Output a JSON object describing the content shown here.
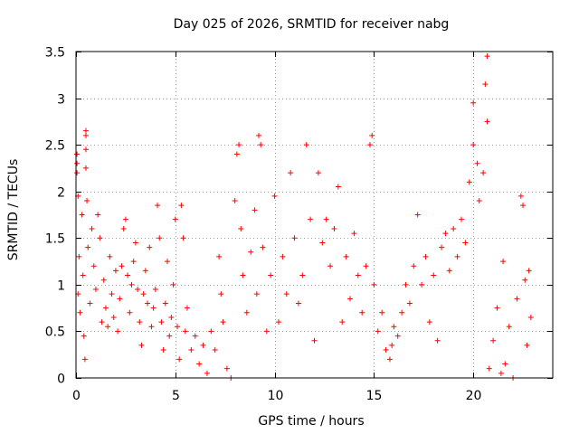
{
  "chart_data": {
    "type": "scatter",
    "title": "Day 025 of 2026, SRMTID for receiver nabg",
    "xlabel": "GPS time / hours",
    "ylabel": "SRMTID / TECUs",
    "xlim": [
      0,
      24
    ],
    "ylim": [
      0,
      3.5
    ],
    "xticks": [
      0,
      5,
      10,
      15,
      20
    ],
    "xtick_labels": [
      "0",
      "5",
      "10",
      "15",
      "20"
    ],
    "yticks": [
      0,
      0.5,
      1,
      1.5,
      2,
      2.5,
      3,
      3.5
    ],
    "ytick_labels": [
      "0",
      "0.5",
      "1",
      "1.5",
      "2",
      "2.5",
      "3",
      "3.5"
    ],
    "grid": true,
    "marker": "+",
    "color": "#ff0000",
    "series": [
      {
        "name": "SRMTID",
        "points": [
          [
            0.05,
            2.4
          ],
          [
            0.05,
            2.3
          ],
          [
            0.05,
            2.2
          ],
          [
            0.1,
            1.95
          ],
          [
            0.1,
            0.9
          ],
          [
            0.15,
            1.3
          ],
          [
            0.2,
            0.7
          ],
          [
            0.3,
            1.75
          ],
          [
            0.35,
            1.1
          ],
          [
            0.4,
            0.45
          ],
          [
            0.45,
            0.2
          ],
          [
            0.5,
            2.6
          ],
          [
            0.5,
            2.65
          ],
          [
            0.5,
            2.45
          ],
          [
            0.5,
            2.25
          ],
          [
            0.55,
            1.9
          ],
          [
            0.6,
            1.4
          ],
          [
            0.7,
            0.8
          ],
          [
            0.8,
            1.6
          ],
          [
            0.9,
            1.2
          ],
          [
            1.0,
            0.95
          ],
          [
            1.1,
            1.75
          ],
          [
            1.2,
            1.5
          ],
          [
            1.3,
            0.6
          ],
          [
            1.4,
            1.05
          ],
          [
            1.5,
            0.75
          ],
          [
            1.6,
            0.55
          ],
          [
            1.7,
            1.3
          ],
          [
            1.8,
            0.9
          ],
          [
            1.9,
            0.65
          ],
          [
            2.0,
            1.15
          ],
          [
            2.1,
            0.5
          ],
          [
            2.2,
            0.85
          ],
          [
            2.3,
            1.2
          ],
          [
            2.4,
            1.6
          ],
          [
            2.5,
            1.7
          ],
          [
            2.6,
            1.1
          ],
          [
            2.7,
            0.7
          ],
          [
            2.8,
            1.0
          ],
          [
            2.9,
            1.25
          ],
          [
            3.0,
            1.45
          ],
          [
            3.1,
            0.95
          ],
          [
            3.2,
            0.6
          ],
          [
            3.3,
            0.35
          ],
          [
            3.4,
            0.9
          ],
          [
            3.5,
            1.15
          ],
          [
            3.6,
            0.8
          ],
          [
            3.7,
            1.4
          ],
          [
            3.8,
            0.55
          ],
          [
            3.9,
            0.75
          ],
          [
            4.0,
            0.95
          ],
          [
            4.1,
            1.85
          ],
          [
            4.2,
            1.5
          ],
          [
            4.3,
            0.6
          ],
          [
            4.4,
            0.3
          ],
          [
            4.5,
            0.8
          ],
          [
            4.6,
            1.25
          ],
          [
            4.7,
            0.45
          ],
          [
            4.8,
            0.65
          ],
          [
            4.9,
            1.0
          ],
          [
            5.0,
            1.7
          ],
          [
            5.1,
            0.55
          ],
          [
            5.2,
            0.2
          ],
          [
            5.3,
            1.85
          ],
          [
            5.4,
            1.5
          ],
          [
            5.5,
            0.5
          ],
          [
            5.6,
            0.75
          ],
          [
            5.8,
            0.3
          ],
          [
            6.0,
            0.45
          ],
          [
            6.2,
            0.15
          ],
          [
            6.4,
            0.35
          ],
          [
            6.6,
            0.05
          ],
          [
            6.8,
            0.5
          ],
          [
            7.0,
            0.3
          ],
          [
            7.2,
            1.3
          ],
          [
            7.3,
            0.9
          ],
          [
            7.4,
            0.6
          ],
          [
            7.6,
            0.1
          ],
          [
            7.8,
            0.0
          ],
          [
            8.0,
            1.9
          ],
          [
            8.1,
            2.4
          ],
          [
            8.2,
            2.5
          ],
          [
            8.3,
            1.6
          ],
          [
            8.4,
            1.1
          ],
          [
            8.6,
            0.7
          ],
          [
            8.8,
            1.35
          ],
          [
            9.0,
            1.8
          ],
          [
            9.1,
            0.9
          ],
          [
            9.2,
            2.6
          ],
          [
            9.3,
            2.5
          ],
          [
            9.4,
            1.4
          ],
          [
            9.6,
            0.5
          ],
          [
            9.8,
            1.1
          ],
          [
            10.0,
            1.95
          ],
          [
            10.2,
            0.6
          ],
          [
            10.4,
            1.3
          ],
          [
            10.6,
            0.9
          ],
          [
            10.8,
            2.2
          ],
          [
            11.0,
            1.5
          ],
          [
            11.2,
            0.8
          ],
          [
            11.4,
            1.1
          ],
          [
            11.6,
            2.5
          ],
          [
            11.8,
            1.7
          ],
          [
            12.0,
            0.4
          ],
          [
            12.2,
            2.2
          ],
          [
            12.4,
            1.45
          ],
          [
            12.6,
            1.7
          ],
          [
            12.8,
            1.2
          ],
          [
            13.0,
            1.6
          ],
          [
            13.2,
            2.05
          ],
          [
            13.4,
            0.6
          ],
          [
            13.6,
            1.3
          ],
          [
            13.8,
            0.85
          ],
          [
            14.0,
            1.55
          ],
          [
            14.2,
            1.1
          ],
          [
            14.4,
            0.7
          ],
          [
            14.6,
            1.2
          ],
          [
            14.8,
            2.5
          ],
          [
            14.9,
            2.6
          ],
          [
            15.0,
            1.0
          ],
          [
            15.2,
            0.5
          ],
          [
            15.4,
            0.7
          ],
          [
            15.6,
            0.3
          ],
          [
            15.8,
            0.2
          ],
          [
            15.9,
            0.35
          ],
          [
            16.0,
            0.55
          ],
          [
            16.2,
            0.45
          ],
          [
            16.4,
            0.7
          ],
          [
            16.6,
            1.0
          ],
          [
            16.8,
            0.8
          ],
          [
            17.0,
            1.2
          ],
          [
            17.2,
            1.75
          ],
          [
            17.4,
            1.0
          ],
          [
            17.6,
            1.3
          ],
          [
            17.8,
            0.6
          ],
          [
            18.0,
            1.1
          ],
          [
            18.2,
            0.4
          ],
          [
            18.4,
            1.4
          ],
          [
            18.6,
            1.55
          ],
          [
            18.8,
            1.15
          ],
          [
            19.0,
            1.6
          ],
          [
            19.2,
            1.3
          ],
          [
            19.4,
            1.7
          ],
          [
            19.6,
            1.45
          ],
          [
            19.8,
            2.1
          ],
          [
            20.0,
            2.5
          ],
          [
            20.0,
            2.95
          ],
          [
            20.2,
            2.3
          ],
          [
            20.3,
            1.9
          ],
          [
            20.5,
            2.2
          ],
          [
            20.6,
            3.15
          ],
          [
            20.7,
            3.45
          ],
          [
            20.7,
            2.75
          ],
          [
            20.8,
            0.1
          ],
          [
            21.0,
            0.4
          ],
          [
            21.2,
            0.75
          ],
          [
            21.4,
            0.05
          ],
          [
            21.5,
            1.25
          ],
          [
            21.6,
            0.15
          ],
          [
            21.8,
            0.55
          ],
          [
            22.0,
            0.0
          ],
          [
            22.2,
            0.85
          ],
          [
            22.4,
            1.95
          ],
          [
            22.5,
            1.85
          ],
          [
            22.6,
            1.05
          ],
          [
            22.7,
            0.35
          ],
          [
            22.8,
            1.15
          ],
          [
            22.9,
            0.65
          ]
        ]
      }
    ]
  }
}
